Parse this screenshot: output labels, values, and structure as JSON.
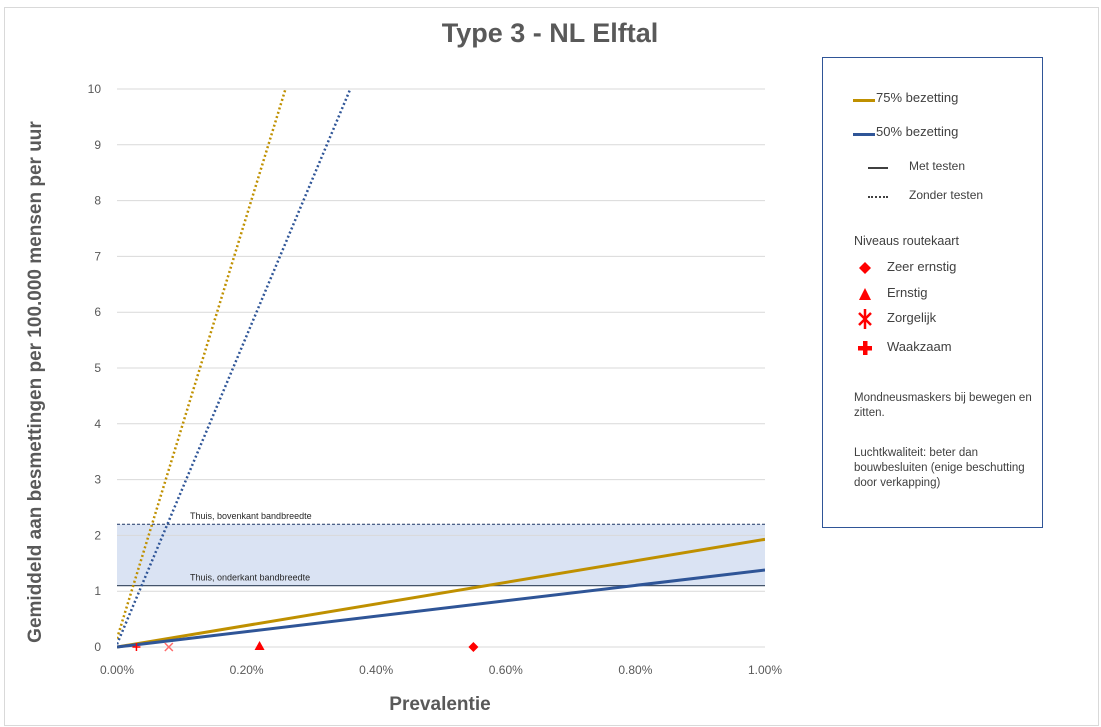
{
  "chart_data": {
    "type": "line",
    "title": "Type 3 - NL Elftal",
    "xlabel": "Prevalentie",
    "ylabel": "Gemiddeld aan besmettingen per 100.000 mensen per uur",
    "xlim": [
      0,
      0.01
    ],
    "ylim": [
      0,
      10
    ],
    "x_ticks": [
      "0.00%",
      "0.20%",
      "0.40%",
      "0.60%",
      "0.80%",
      "1.00%"
    ],
    "y_ticks": [
      "0",
      "1",
      "2",
      "3",
      "4",
      "5",
      "6",
      "7",
      "8",
      "9",
      "10"
    ],
    "grid": "horizontal",
    "legend_position": "right",
    "series": [
      {
        "name": "75% bezetting",
        "style": "solid",
        "color": "#bf9000",
        "x": [
          0,
          0.01
        ],
        "y": [
          0,
          1.93
        ]
      },
      {
        "name": "50% bezetting",
        "style": "solid",
        "color": "#2f5597",
        "x": [
          0,
          0.01
        ],
        "y": [
          0,
          1.38
        ]
      },
      {
        "style": "dotted",
        "color": "#bf9000",
        "x": [
          0,
          0.0026
        ],
        "y": [
          0.15,
          10
        ]
      },
      {
        "style": "dotted",
        "color": "#2f5597",
        "x": [
          0,
          0.0036
        ],
        "y": [
          0.05,
          10
        ]
      }
    ],
    "band": {
      "y_low": 1.1,
      "y_high": 2.2,
      "color": "#dae3f3"
    },
    "band_labels": {
      "upper": "Thuis, bovenkant bandbreedte",
      "lower": "Thuis, onderkant bandbreedte"
    },
    "markers": [
      {
        "level": "Waakzaam",
        "symbol": "plus",
        "x": 0.0003,
        "y": 0
      },
      {
        "level": "Zorgelijk",
        "symbol": "star",
        "x": 0.0008,
        "y": 0
      },
      {
        "level": "Ernstig",
        "symbol": "triangle",
        "x": 0.0022,
        "y": 0
      },
      {
        "level": "Zeer ernstig",
        "symbol": "diamond",
        "x": 0.0055,
        "y": 0
      }
    ]
  },
  "legend": {
    "series75": "75% bezetting",
    "series50": "50% bezetting",
    "met_testen": "Met testen",
    "zonder_testen": "Zonder testen",
    "niveaus_title": "Niveaus routekaart",
    "zeer_ernstig": "Zeer ernstig",
    "ernstig": "Ernstig",
    "zorgelijk": "Zorgelijk",
    "waakzaam": "Waakzaam",
    "note1": "Mondneusmaskers bij bewegen en zitten.",
    "note2": "Luchtkwaliteit: beter dan bouwbesluiten (enige beschutting door verkapping)"
  },
  "colors": {
    "gold": "#bf9000",
    "blue": "#2f5597",
    "marker_red": "#ff0000",
    "band": "#dae3f3"
  }
}
